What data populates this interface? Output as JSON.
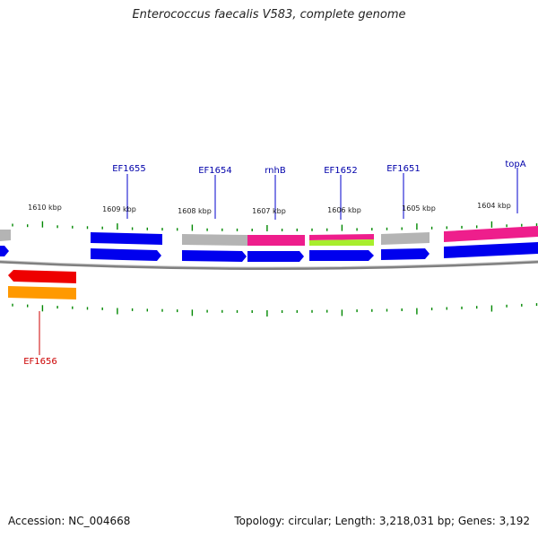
{
  "title": "Enterococcus faecalis V583, complete genome",
  "footer": {
    "accession": "Accession: NC_004668",
    "summary": "Topology: circular; Length: 3,218,031 bp; Genes: 3,192"
  },
  "scale_labels": [
    "1610 kbp",
    "1609 kbp",
    "1608 kbp",
    "1607 kbp",
    "1606 kbp",
    "1605 kbp",
    "1604 kbp"
  ],
  "gene_labels": {
    "upper": [
      "EF1655",
      "EF1654",
      "rnhB",
      "EF1652",
      "EF1651",
      "topA"
    ],
    "lower": [
      "EF1656"
    ]
  },
  "colors": {
    "blue": "#0000ee",
    "magenta": "#ee1e8c",
    "gray": "#b4b4b4",
    "lime": "#a8ee2c",
    "red": "#ee0000",
    "orange": "#ff9900",
    "tick_green": "#008800",
    "backbone": "#808080",
    "label_blue": "#0000aa",
    "label_red": "#cc0000"
  }
}
